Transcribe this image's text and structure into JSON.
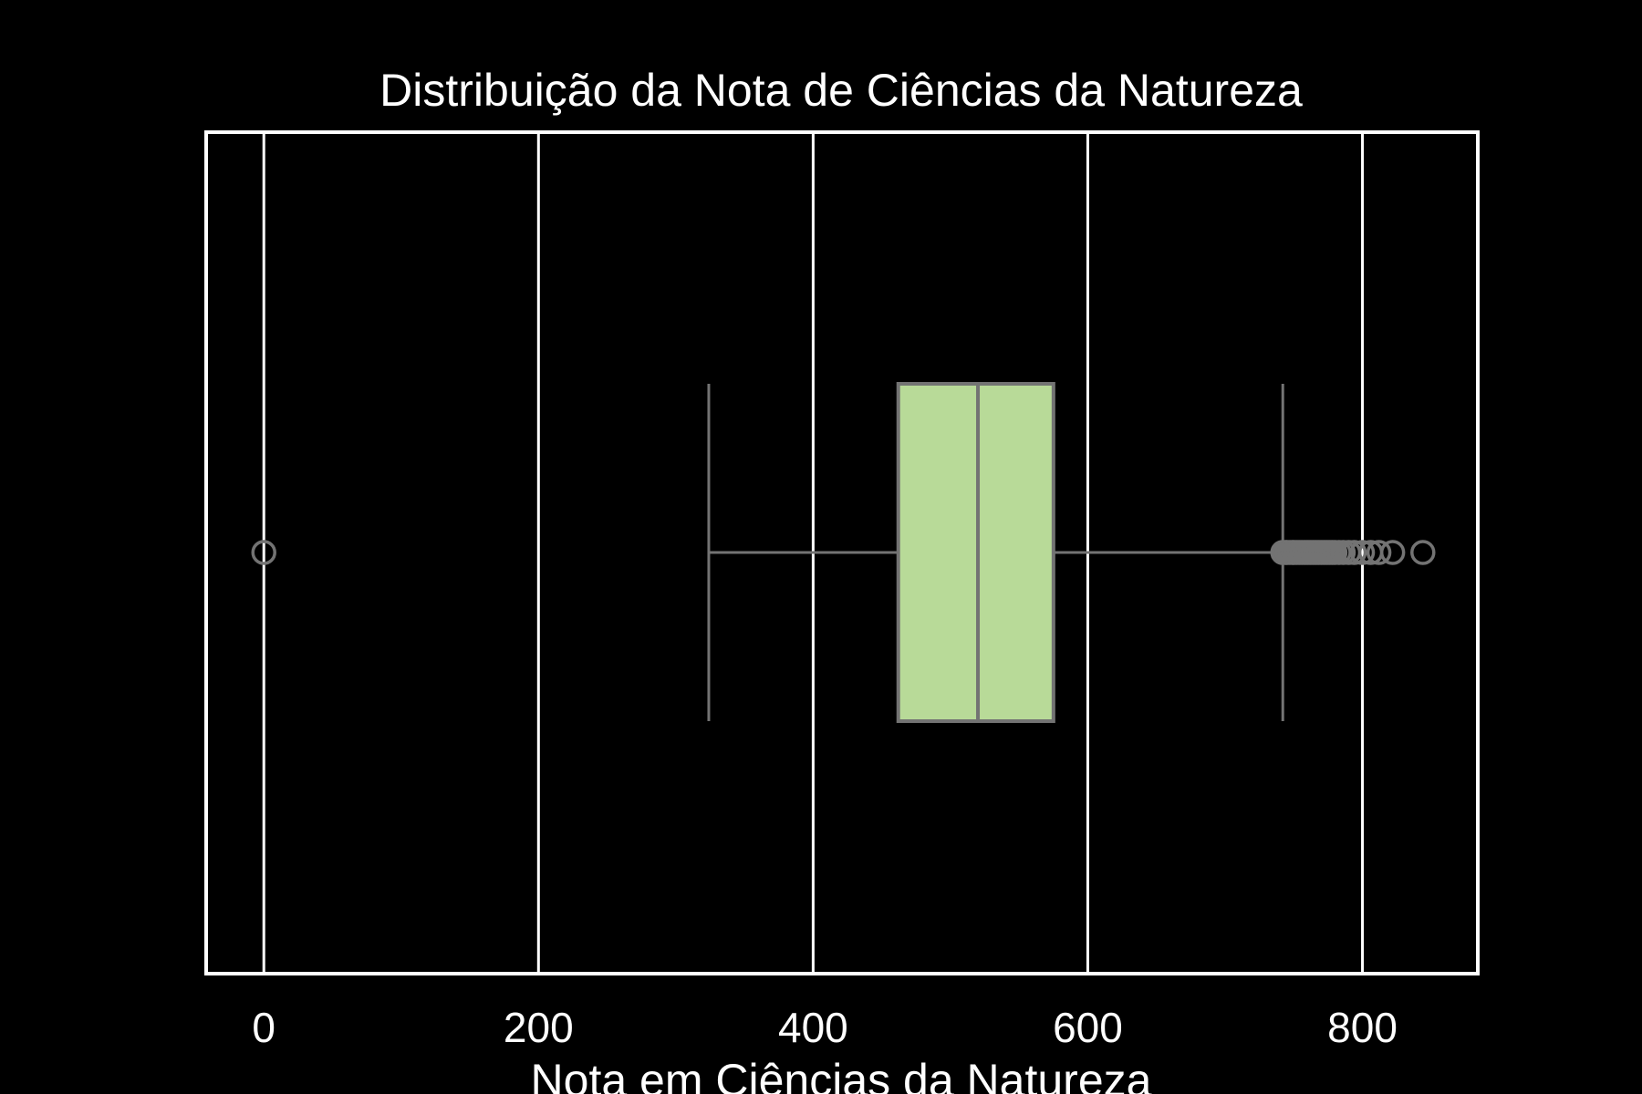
{
  "chart_data": {
    "type": "boxplot",
    "orientation": "horizontal",
    "title": "Distribuição da Nota de Ciências da Natureza",
    "xlabel": "Nota em Ciências da Natureza",
    "ylabel": "",
    "xlim": [
      -42,
      884
    ],
    "xticks": [
      0,
      200,
      400,
      600,
      800
    ],
    "grid": true,
    "box": {
      "whisker_low": 324,
      "q1": 462,
      "median": 520,
      "q3": 575,
      "whisker_high": 742
    },
    "outliers": [
      0,
      742,
      744,
      745,
      747,
      749,
      750,
      752,
      754,
      756,
      758,
      760,
      762,
      764,
      766,
      768,
      770,
      772,
      774,
      776,
      778,
      780,
      783,
      786,
      790,
      794,
      800,
      806,
      812,
      822,
      844
    ]
  },
  "colors": {
    "background": "#000000",
    "axes_edge": "#ffffff",
    "grid": "#ffffff",
    "text": "#ffffff",
    "box_fill": "#b8da98",
    "box_edge": "#737373",
    "flier_edge": "#737373"
  }
}
